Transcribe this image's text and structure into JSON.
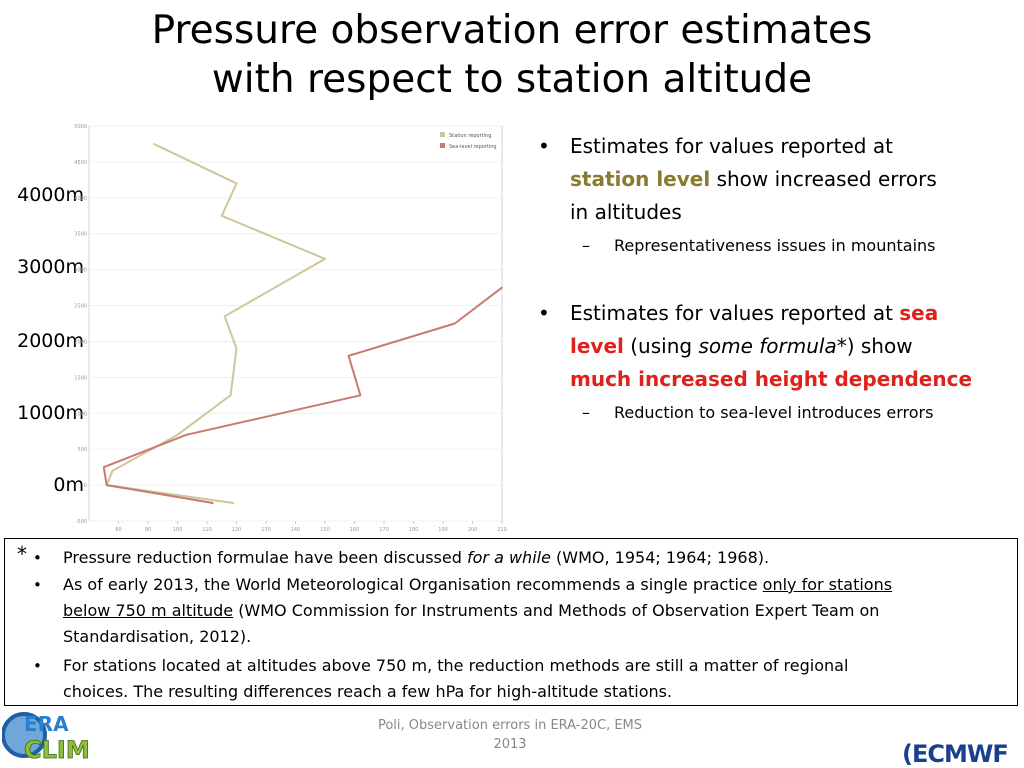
{
  "title": {
    "line1": "Pressure observation error estimates",
    "line2": "with respect to station altitude"
  },
  "altitude_labels": [
    "4000m",
    "3000m",
    "2000m",
    "1000m",
    "0m"
  ],
  "chart_data": {
    "type": "line",
    "title": "",
    "xlabel": "",
    "ylabel": "",
    "xlim": [
      70,
      210
    ],
    "ylim": [
      -500,
      5000
    ],
    "x_ticks": [
      "80",
      "90",
      "100",
      "110",
      "120",
      "130",
      "140",
      "150",
      "160",
      "170",
      "180",
      "190",
      "200",
      "210"
    ],
    "y_ticks": [
      "-500",
      "0",
      "500",
      "1000",
      "1500",
      "2000",
      "2500",
      "3000",
      "3500",
      "4000",
      "4500",
      "5000"
    ],
    "legend_position": "top-right",
    "series": [
      {
        "name": "Station reporting",
        "color": "#cfc79a",
        "points": [
          [
            92,
            4750
          ],
          [
            120,
            4200
          ],
          [
            115,
            3750
          ],
          [
            150,
            3150
          ],
          [
            116,
            2350
          ],
          [
            120,
            1900
          ],
          [
            118,
            1250
          ],
          [
            100,
            700
          ],
          [
            78,
            200
          ],
          [
            76,
            0
          ],
          [
            119,
            -250
          ]
        ]
      },
      {
        "name": "Sea-level reporting",
        "color": "#c97a70",
        "points": [
          [
            210,
            2750
          ],
          [
            194,
            2250
          ],
          [
            158,
            1800
          ],
          [
            162,
            1250
          ],
          [
            103,
            700
          ],
          [
            75,
            250
          ],
          [
            76,
            0
          ],
          [
            112,
            -250
          ]
        ]
      }
    ]
  },
  "right_panel": {
    "bullet1": {
      "text_a": "Estimates for values reported at",
      "highlight": "station level",
      "text_b": "show increased errors",
      "text_c": "in altitudes",
      "sub": "Representativeness issues in mountains"
    },
    "bullet2": {
      "text_a": "Estimates for values reported at",
      "highlight1a": "sea",
      "highlight1b": "level",
      "text_b": "(using",
      "italic": "some formula*",
      "text_c": ") show",
      "highlight2": "much increased height dependence",
      "sub": "Reduction to sea-level introduces errors"
    }
  },
  "note_box": {
    "star": "*",
    "item1": {
      "text_a": "Pressure reduction formulae have been discussed",
      "italic": "for a while",
      "text_b": "(WMO, 1954; 1964; 1968)."
    },
    "item2": {
      "text_a": "As of early 2013, the World Meteorological Organisation recommends a single practice",
      "underline_a": "only for stations",
      "underline_b": "below 750 m altitude",
      "text_b": "(WMO Commission for Instruments and Methods of Observation Expert Team on",
      "text_c": "Standardisation, 2012)."
    },
    "item3": {
      "line1": "For stations located at altitudes above 750 m, the reduction methods are still a matter of regional",
      "line2": "choices. The resulting differences reach a few hPa for high-altitude stations."
    }
  },
  "footer": {
    "line1": "Poli, Observation errors in ERA-20C, EMS",
    "line2": "2013"
  },
  "logos": {
    "left_top": "ERA",
    "left_bottom": "CLIM",
    "right": "ECMWF"
  }
}
